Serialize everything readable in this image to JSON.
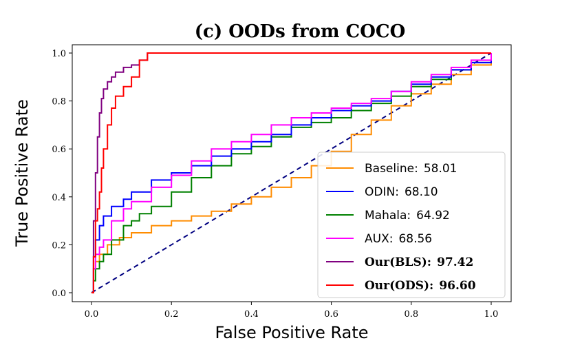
{
  "chart_data": {
    "type": "line",
    "title": "(c) OODs from COCO",
    "xlabel": "False Positive Rate",
    "ylabel": "True Positive Rate",
    "xlim": [
      0.0,
      1.0
    ],
    "ylim": [
      0.0,
      1.0
    ],
    "xticks": [
      0.0,
      0.2,
      0.4,
      0.6,
      0.8,
      1.0
    ],
    "yticks": [
      0.0,
      0.2,
      0.4,
      0.6,
      0.8,
      1.0
    ],
    "xtick_labels": [
      "0.0",
      "0.2",
      "0.4",
      "0.6",
      "0.8",
      "1.0"
    ],
    "ytick_labels": [
      "0.0",
      "0.2",
      "0.4",
      "0.6",
      "0.8",
      "1.0"
    ],
    "legend_position": "bottom-right",
    "series": [
      {
        "name": "Baseline",
        "legend_label": "Baseline:",
        "score": "58.01",
        "bold": false,
        "color": "#ff8c00",
        "x": [
          0.0,
          0.005,
          0.01,
          0.02,
          0.04,
          0.07,
          0.1,
          0.15,
          0.2,
          0.25,
          0.3,
          0.35,
          0.4,
          0.45,
          0.5,
          0.55,
          0.6,
          0.65,
          0.7,
          0.75,
          0.8,
          0.85,
          0.9,
          0.95,
          1.0
        ],
        "y": [
          0.0,
          0.1,
          0.13,
          0.16,
          0.2,
          0.23,
          0.25,
          0.28,
          0.3,
          0.32,
          0.34,
          0.37,
          0.4,
          0.44,
          0.48,
          0.53,
          0.59,
          0.66,
          0.72,
          0.78,
          0.83,
          0.87,
          0.91,
          0.95,
          1.0
        ]
      },
      {
        "name": "ODIN",
        "legend_label": "ODIN:",
        "score": "68.10",
        "bold": false,
        "color": "#0000ff",
        "x": [
          0.0,
          0.005,
          0.01,
          0.02,
          0.03,
          0.05,
          0.08,
          0.1,
          0.15,
          0.2,
          0.25,
          0.3,
          0.35,
          0.4,
          0.45,
          0.5,
          0.55,
          0.6,
          0.65,
          0.7,
          0.75,
          0.8,
          0.85,
          0.9,
          0.95,
          1.0
        ],
        "y": [
          0.0,
          0.15,
          0.22,
          0.28,
          0.32,
          0.36,
          0.39,
          0.42,
          0.47,
          0.5,
          0.53,
          0.57,
          0.6,
          0.63,
          0.66,
          0.7,
          0.73,
          0.76,
          0.78,
          0.8,
          0.84,
          0.87,
          0.9,
          0.93,
          0.96,
          1.0
        ]
      },
      {
        "name": "Mahala",
        "legend_label": "Mahala:",
        "score": "64.92",
        "bold": false,
        "color": "#008000",
        "x": [
          0.0,
          0.005,
          0.01,
          0.02,
          0.03,
          0.05,
          0.08,
          0.1,
          0.12,
          0.15,
          0.2,
          0.25,
          0.3,
          0.35,
          0.4,
          0.45,
          0.5,
          0.55,
          0.6,
          0.65,
          0.7,
          0.75,
          0.8,
          0.85,
          0.9,
          0.95,
          1.0
        ],
        "y": [
          0.0,
          0.05,
          0.1,
          0.13,
          0.16,
          0.22,
          0.28,
          0.3,
          0.33,
          0.36,
          0.42,
          0.48,
          0.53,
          0.58,
          0.61,
          0.65,
          0.69,
          0.71,
          0.73,
          0.76,
          0.79,
          0.82,
          0.86,
          0.89,
          0.93,
          0.96,
          1.0
        ]
      },
      {
        "name": "AUX",
        "legend_label": "AUX:",
        "score": "68.56",
        "bold": false,
        "color": "#ff00ff",
        "x": [
          0.0,
          0.005,
          0.01,
          0.02,
          0.03,
          0.05,
          0.08,
          0.1,
          0.15,
          0.2,
          0.25,
          0.3,
          0.35,
          0.4,
          0.45,
          0.5,
          0.55,
          0.6,
          0.65,
          0.7,
          0.75,
          0.8,
          0.85,
          0.9,
          0.95,
          1.0
        ],
        "y": [
          0.0,
          0.1,
          0.16,
          0.19,
          0.22,
          0.3,
          0.35,
          0.38,
          0.44,
          0.49,
          0.55,
          0.6,
          0.63,
          0.66,
          0.7,
          0.73,
          0.75,
          0.77,
          0.79,
          0.81,
          0.84,
          0.88,
          0.91,
          0.94,
          0.97,
          1.0
        ]
      },
      {
        "name": "Our(BLS)",
        "legend_label": "Our(BLS):",
        "score": "97.42",
        "bold": true,
        "color": "#800080",
        "x": [
          0.0,
          0.005,
          0.01,
          0.015,
          0.02,
          0.025,
          0.03,
          0.04,
          0.05,
          0.06,
          0.08,
          0.1,
          0.12,
          0.14,
          0.2,
          0.4,
          0.6,
          0.8,
          1.0
        ],
        "y": [
          0.0,
          0.3,
          0.5,
          0.65,
          0.75,
          0.81,
          0.85,
          0.88,
          0.9,
          0.92,
          0.94,
          0.95,
          0.97,
          1.0,
          1.0,
          1.0,
          1.0,
          1.0,
          1.0
        ]
      },
      {
        "name": "Our(ODS)",
        "legend_label": "Our(ODS):",
        "score": "96.60",
        "bold": true,
        "color": "#ff0000",
        "x": [
          0.0,
          0.005,
          0.01,
          0.015,
          0.02,
          0.025,
          0.03,
          0.04,
          0.05,
          0.06,
          0.08,
          0.1,
          0.12,
          0.14,
          0.2,
          0.4,
          0.6,
          0.8,
          1.0
        ],
        "y": [
          0.0,
          0.15,
          0.3,
          0.35,
          0.42,
          0.52,
          0.6,
          0.7,
          0.77,
          0.82,
          0.86,
          0.9,
          0.97,
          1.0,
          1.0,
          1.0,
          1.0,
          1.0,
          1.0
        ]
      },
      {
        "name": "Random",
        "legend_label": "",
        "score": "",
        "bold": false,
        "color": "#000080",
        "dashed": true,
        "x": [
          0.0,
          1.0
        ],
        "y": [
          0.0,
          1.0
        ]
      }
    ]
  }
}
